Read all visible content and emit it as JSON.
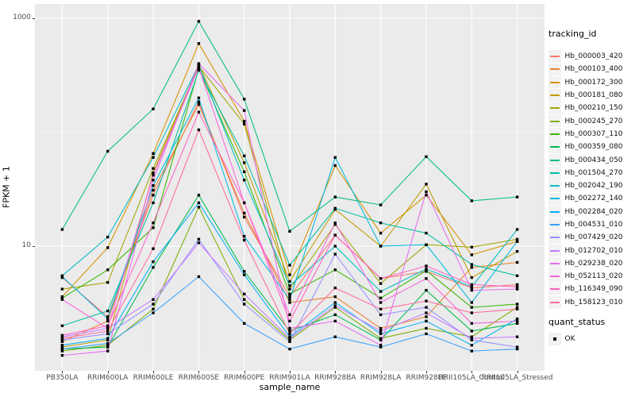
{
  "colors": {
    "panel_bg": "#EBEBEB",
    "grid_line": "#FFFFFF",
    "axis_tick_text": "#4D4D4D",
    "axis_title_text": "#000000",
    "tick_mark": "#333333",
    "legend_key_bg": "#F2F2F2",
    "point": "#000000"
  },
  "legend": {
    "tracking_title": "tracking_id",
    "quant_title": "quant_status",
    "quant_items": [
      {
        "label": "OK",
        "marker": "square-point-icon",
        "color": "#000000"
      }
    ]
  },
  "chart_data": {
    "type": "line",
    "title": "",
    "xlabel": "sample_name",
    "ylabel": "FPKM + 1",
    "y_scale": "log10",
    "grid": true,
    "legend_position": "right",
    "x_categories": [
      "PB350LA",
      "RRIM600LA",
      "RRIM600LE",
      "RRIM600SE",
      "RRIM600PE",
      "RRIM901LA",
      "RRIM928BA",
      "RRIM928LA",
      "RRIM928LE",
      "RRII105LA_Control",
      "RRII105LA_Stressed"
    ],
    "y_axis": {
      "tick_labels": [
        "1000",
        "10"
      ],
      "tick_values": [
        1000,
        10
      ],
      "major_gridlines": [
        1000,
        10
      ],
      "minor_gridlines": [
        100,
        1
      ],
      "ylim_log10": [
        -0.094,
        3.12
      ]
    },
    "series": [
      {
        "name": "Hb_000003_420",
        "color": "#F8766D",
        "values": [
          5.3,
          2.4,
          28,
          185,
          18,
          3.6,
          12.5,
          5.2,
          6,
          4.3,
          4.6
        ]
      },
      {
        "name": "Hb_000103_400",
        "color": "#EA8331",
        "values": [
          1.45,
          2.2,
          31,
          175,
          19.5,
          3.2,
          3.6,
          1.9,
          2.4,
          6.5,
          7.2
        ]
      },
      {
        "name": "Hb_000172_300",
        "color": "#D89000",
        "values": [
          3.6,
          9.7,
          65,
          600,
          125,
          5.6,
          51,
          13,
          28,
          8.4,
          11
        ]
      },
      {
        "name": "Hb_000181_080",
        "color": "#C09B00",
        "values": [
          1.3,
          1.5,
          44,
          390,
          54,
          4.9,
          21,
          10,
          35,
          5.3,
          9
        ]
      },
      {
        "name": "Hb_000210_150",
        "color": "#A3A500",
        "values": [
          4.2,
          4.8,
          48,
          380,
          118,
          4.2,
          15.5,
          4.7,
          10.3,
          9.8,
          11.5
        ]
      },
      {
        "name": "Hb_000245_270",
        "color": "#7CAE00",
        "values": [
          1.2,
          1.35,
          2.8,
          22,
          3.4,
          1.5,
          2.9,
          1.55,
          1.9,
          1.6,
          2.9
        ]
      },
      {
        "name": "Hb_000307_110",
        "color": "#39B600",
        "values": [
          3.5,
          6.2,
          14.5,
          360,
          45,
          3.8,
          6.2,
          3.5,
          6.1,
          2.9,
          3.1
        ]
      },
      {
        "name": "Hb_000359_080",
        "color": "#00BB4E",
        "values": [
          1.25,
          1.3,
          6.5,
          28,
          6,
          1.8,
          2.5,
          1.5,
          4.1,
          1.8,
          2.1
        ]
      },
      {
        "name": "Hb_000434_050",
        "color": "#00BF7D",
        "values": [
          14,
          68,
          160,
          940,
          195,
          13.5,
          27,
          23,
          61,
          25,
          27
        ]
      },
      {
        "name": "Hb_001504_270",
        "color": "#00C1A3",
        "values": [
          2,
          2.7,
          24,
          350,
          62,
          6.8,
          21.5,
          16,
          13,
          6.9,
          5.5
        ]
      },
      {
        "name": "Hb_002042_190",
        "color": "#00BFC4",
        "values": [
          5.5,
          12,
          60,
          390,
          38,
          4.5,
          10,
          4,
          6.3,
          4.4,
          14
        ]
      },
      {
        "name": "Hb_002272_140",
        "color": "#00BAE0",
        "values": [
          5.4,
          2.3,
          34,
          200,
          12.2,
          3.4,
          60,
          10,
          10.3,
          3.2,
          11
        ]
      },
      {
        "name": "Hb_002284_020",
        "color": "#00B0F6",
        "values": [
          1.35,
          1.55,
          7.3,
          24,
          5.6,
          1.6,
          3.2,
          1.7,
          2.2,
          1.35,
          2.3
        ]
      },
      {
        "name": "Hb_004531_010",
        "color": "#35A2FF",
        "values": [
          1.25,
          1.4,
          2.6,
          5.4,
          2.1,
          1.25,
          1.6,
          1.3,
          1.7,
          1.2,
          1.25
        ]
      },
      {
        "name": "Hb_007429_020",
        "color": "#9590FF",
        "values": [
          1.5,
          1.7,
          3.1,
          11.5,
          3.1,
          1.45,
          8.5,
          2.5,
          2.9,
          1.5,
          1.3
        ]
      },
      {
        "name": "Hb_012702_010",
        "color": "#C77CFF",
        "values": [
          1.6,
          1.9,
          3.4,
          10.7,
          3.8,
          1.55,
          3,
          1.8,
          2.6,
          1.55,
          1.6
        ]
      },
      {
        "name": "Hb_029238_020",
        "color": "#E76BF3",
        "values": [
          1.1,
          1.2,
          38,
          400,
          155,
          1.9,
          2.2,
          1.35,
          30,
          4.1,
          4.2
        ]
      },
      {
        "name": "Hb_052113_020",
        "color": "#FA62DB",
        "values": [
          3.4,
          1.9,
          42,
          370,
          24,
          2.5,
          16,
          3.2,
          5.2,
          2.1,
          2.2
        ]
      },
      {
        "name": "Hb_116349_090",
        "color": "#FF61C3",
        "values": [
          1.65,
          2,
          16,
          150,
          24,
          2.2,
          12.5,
          5.2,
          6.7,
          4.6,
          4.4
        ]
      },
      {
        "name": "Hb_158123_010",
        "color": "#FF6A9A",
        "values": [
          1.55,
          1.8,
          9.5,
          105,
          11.3,
          1.7,
          4.3,
          2.8,
          3.3,
          2.6,
          2.8
        ]
      }
    ]
  }
}
